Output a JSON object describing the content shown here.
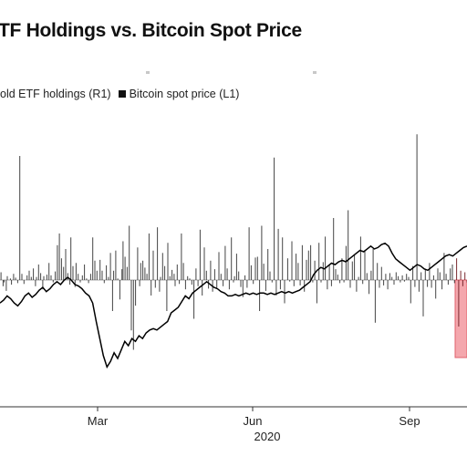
{
  "chart_data": {
    "type": "bar+line",
    "title": "TF Holdings vs. Bitcoin Spot Price",
    "year_label": "2020",
    "x_ticks": [
      "Mar",
      "Jun",
      "Sep"
    ],
    "legend": [
      {
        "name": "old ETF holdings (R1)",
        "swatch": "none"
      },
      {
        "name": "Bitcoin spot price (L1)",
        "swatch": "#111111"
      }
    ],
    "colors": {
      "bars": "#444444",
      "line": "#000000",
      "highlight": "#f4a7ad",
      "highlight_edge": "#e0606c"
    },
    "series": [
      {
        "name": "old ETF holdings (R1)",
        "kind": "bar",
        "values": [
          0,
          10,
          0,
          -8,
          -3,
          0,
          -14,
          5,
          0,
          0,
          2,
          -6,
          0,
          8,
          0,
          3,
          0,
          -4,
          0,
          160,
          0,
          8,
          0,
          -5,
          0,
          0,
          6,
          0,
          12,
          0,
          4,
          0,
          15,
          0,
          -8,
          4,
          0,
          20,
          0,
          9,
          0,
          -12,
          5,
          0,
          0,
          7,
          0,
          22,
          0,
          6,
          0,
          -3,
          0,
          11,
          0,
          45,
          0,
          60,
          0,
          28,
          0,
          17,
          0,
          40,
          0,
          9,
          0,
          -6,
          55,
          0,
          18,
          0,
          -9,
          22,
          0,
          8,
          0,
          -3,
          0,
          6,
          0,
          20,
          0,
          2,
          0,
          -4,
          0,
          8,
          0,
          55,
          0,
          25,
          0,
          12,
          0,
          0,
          26,
          0,
          12,
          0,
          -4,
          0,
          19,
          0,
          4,
          0,
          35,
          0,
          -40,
          12,
          0,
          38,
          0,
          2,
          0,
          -25,
          0,
          14,
          50,
          0,
          30,
          0,
          17,
          0,
          70,
          0,
          -65,
          0,
          -90,
          0,
          -33,
          0,
          42,
          0,
          -8,
          22,
          0,
          25,
          0,
          16,
          0,
          8,
          0,
          60,
          0,
          -20,
          0,
          38,
          0,
          -10,
          0,
          68,
          0,
          -15,
          4,
          0,
          35,
          0,
          18,
          0,
          -40,
          48,
          0,
          5,
          0,
          13,
          0,
          8,
          -8,
          0,
          20,
          0,
          -5,
          0,
          60,
          0,
          22,
          0,
          -12,
          0,
          5,
          0,
          2,
          0,
          -6,
          0,
          -50,
          0,
          15,
          0,
          -8,
          0,
          65,
          0,
          -20,
          0,
          42,
          0,
          12,
          0,
          -11,
          0,
          25,
          0,
          -15,
          0,
          14,
          0,
          -10,
          0,
          36,
          0,
          8,
          0,
          -8,
          0,
          44,
          0,
          15,
          0,
          -12,
          0,
          55,
          0,
          -3,
          5,
          0,
          34,
          0,
          11,
          0,
          -9,
          0,
          -22,
          0,
          6,
          0,
          -10,
          0,
          68,
          0,
          19,
          0,
          -5,
          0,
          29,
          0,
          30,
          0,
          -40,
          0,
          70,
          0,
          21,
          0,
          -14,
          0,
          40,
          0,
          11,
          0,
          -3,
          0,
          158,
          0,
          -20,
          0,
          66,
          0,
          -12,
          0,
          55,
          0,
          -30,
          0,
          0,
          28,
          0,
          -2,
          0,
          50,
          0,
          -8,
          0,
          34,
          0,
          22,
          0,
          -7,
          0,
          45,
          0,
          -15,
          0,
          26,
          0,
          38,
          0,
          45,
          0,
          -3,
          0,
          25,
          0,
          -30,
          0,
          48,
          0,
          -3,
          0,
          23,
          0,
          56,
          0,
          -12,
          0,
          20,
          0,
          -8,
          0,
          80,
          0,
          14,
          0,
          7,
          0,
          -4,
          0,
          28,
          0,
          -3,
          0,
          44,
          0,
          90,
          0,
          -10,
          0,
          24,
          0,
          32,
          0,
          -15,
          0,
          4,
          0,
          56,
          0,
          -5,
          0,
          38,
          0,
          9,
          0,
          -18,
          0,
          12,
          0,
          40,
          0,
          -55,
          0,
          22,
          0,
          -10,
          0,
          17,
          0,
          -7,
          0,
          8,
          0,
          -12,
          0,
          9,
          0,
          4,
          0,
          -6,
          0,
          10,
          0,
          5,
          0,
          -3,
          0,
          6,
          0,
          -2,
          0,
          8,
          0,
          4,
          0,
          -30,
          0,
          18,
          0,
          -9,
          0,
          188,
          0,
          -15,
          0,
          10,
          0,
          -47,
          0,
          14,
          0,
          -9,
          0,
          22,
          0,
          -10,
          0,
          6,
          0,
          -24,
          0,
          15,
          0,
          10,
          0,
          -12,
          0,
          35,
          0,
          8,
          0,
          -6,
          0,
          15,
          0,
          20,
          0,
          -4,
          0,
          28,
          0,
          -60,
          0,
          12,
          0,
          -8,
          0,
          10,
          0,
          -3
        ]
      },
      {
        "name": "Bitcoin spot price (L1)",
        "kind": "line",
        "values": [
          0.55,
          0.57,
          0.6,
          0.58,
          0.55,
          0.53,
          0.56,
          0.6,
          0.62,
          0.59,
          0.61,
          0.64,
          0.66,
          0.63,
          0.65,
          0.68,
          0.7,
          0.68,
          0.71,
          0.73,
          0.71,
          0.68,
          0.67,
          0.65,
          0.62,
          0.6,
          0.55,
          0.42,
          0.3,
          0.18,
          0.1,
          0.14,
          0.2,
          0.16,
          0.22,
          0.28,
          0.25,
          0.3,
          0.28,
          0.32,
          0.3,
          0.34,
          0.36,
          0.37,
          0.36,
          0.38,
          0.4,
          0.42,
          0.48,
          0.5,
          0.52,
          0.56,
          0.6,
          0.58,
          0.62,
          0.64,
          0.66,
          0.68,
          0.7,
          0.68,
          0.66,
          0.65,
          0.63,
          0.62,
          0.6,
          0.6,
          0.61,
          0.6,
          0.61,
          0.62,
          0.61,
          0.62,
          0.61,
          0.62,
          0.62,
          0.61,
          0.62,
          0.61,
          0.62,
          0.63,
          0.62,
          0.63,
          0.62,
          0.63,
          0.64,
          0.66,
          0.68,
          0.7,
          0.75,
          0.78,
          0.8,
          0.79,
          0.81,
          0.83,
          0.82,
          0.84,
          0.85,
          0.84,
          0.86,
          0.88,
          0.9,
          0.92,
          0.91,
          0.93,
          0.95,
          0.93,
          0.94,
          0.96,
          0.97,
          0.95,
          0.9,
          0.86,
          0.84,
          0.82,
          0.8,
          0.78,
          0.8,
          0.82,
          0.81,
          0.79,
          0.78,
          0.8,
          0.82,
          0.84,
          0.86,
          0.88,
          0.89,
          0.88,
          0.9,
          0.92,
          0.94,
          0.95
        ]
      }
    ],
    "highlight": {
      "type": "shaded-region",
      "from_fraction": 0.975,
      "to_fraction": 1.0,
      "bottom": -90
    }
  }
}
